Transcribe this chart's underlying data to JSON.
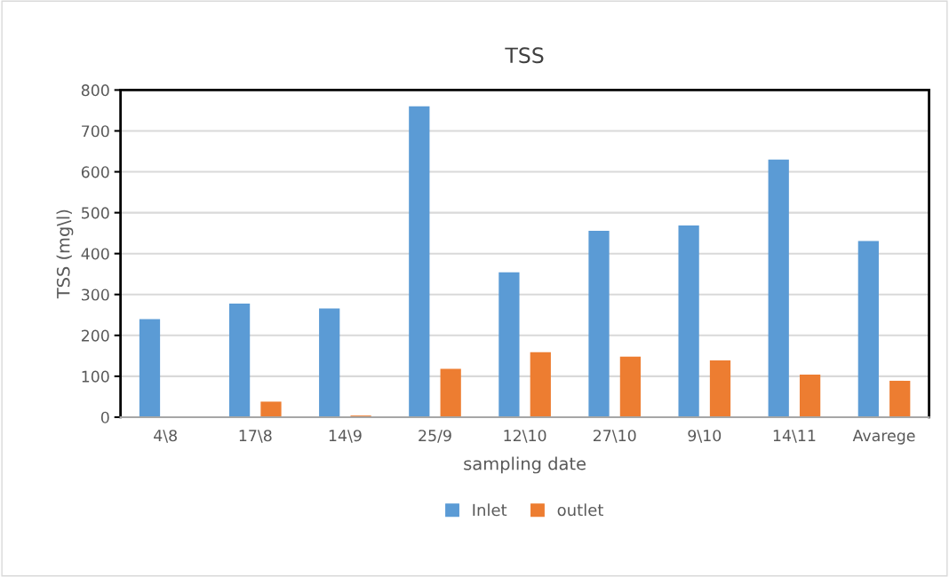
{
  "chart_data": {
    "type": "bar",
    "title": "TSS",
    "xlabel": "sampling date",
    "ylabel": "TSS (mg\\l)",
    "categories": [
      "4\\8",
      "17\\8",
      "14\\9",
      "25/9",
      "12\\10",
      "27\\10",
      "9\\10",
      "14\\11",
      "Avarege"
    ],
    "series": [
      {
        "name": "Inlet",
        "color": "#5b9bd5",
        "values": [
          240,
          278,
          266,
          760,
          354,
          456,
          469,
          630,
          431
        ]
      },
      {
        "name": "outlet",
        "color": "#ed7d31",
        "values": [
          0,
          38,
          4,
          118,
          159,
          148,
          139,
          104,
          89
        ]
      }
    ],
    "ylim": [
      0,
      800
    ],
    "yticks": [
      0,
      100,
      200,
      300,
      400,
      500,
      600,
      700,
      800
    ],
    "grid": "y",
    "legend": "bottom"
  }
}
